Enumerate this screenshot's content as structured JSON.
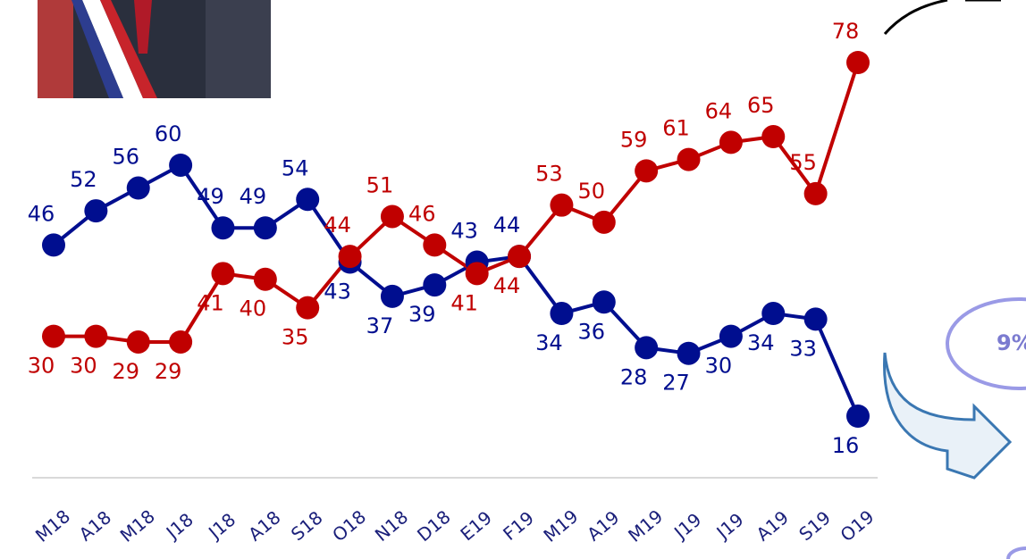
{
  "chart_data": {
    "type": "line",
    "categories": [
      "M18",
      "A18",
      "M18",
      "J18",
      "J18",
      "A18",
      "S18",
      "O18",
      "N18",
      "D18",
      "E19",
      "F19",
      "M19",
      "A19",
      "M19",
      "J19",
      "J19",
      "A19",
      "S19",
      "O19"
    ],
    "series": [
      {
        "color": "#000e8f",
        "values": [
          46,
          52,
          56,
          60,
          49,
          49,
          54,
          43,
          37,
          39,
          43,
          44,
          34,
          36,
          28,
          27,
          30,
          34,
          33,
          16
        ]
      },
      {
        "color": "#c00000",
        "values": [
          30,
          30,
          29,
          29,
          41,
          40,
          35,
          44,
          51,
          46,
          41,
          44,
          53,
          50,
          59,
          61,
          64,
          65,
          55,
          78
        ]
      }
    ],
    "annotation": "9%"
  }
}
